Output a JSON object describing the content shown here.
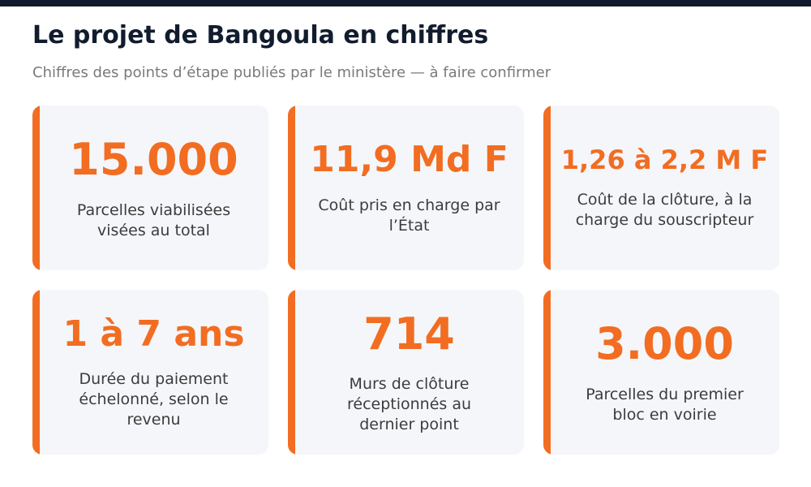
{
  "header": {
    "title": "Le projet de Bangoula en chiffres",
    "subtitle": "Chiffres des points d’étape publiés par le ministère — à faire confirmer"
  },
  "colors": {
    "accent": "#f26d21",
    "top_bar": "#0f1b2d",
    "card_background": "#f5f6fa"
  },
  "stats": [
    {
      "value": "15.000",
      "label": "Parcelles viabilisées visées au total"
    },
    {
      "value": "11,9 Md F",
      "label": "Coût pris en charge par l’État"
    },
    {
      "value": "1,26 à 2,2 M F",
      "label": "Coût de la clôture, à la charge du souscripteur"
    },
    {
      "value": "1 à 7 ans",
      "label": "Durée du paiement échelonné, selon le revenu"
    },
    {
      "value": "714",
      "label": "Murs de clôture réceptionnés au dernier point"
    },
    {
      "value": "3.000",
      "label": "Parcelles du premier bloc en voirie"
    }
  ]
}
